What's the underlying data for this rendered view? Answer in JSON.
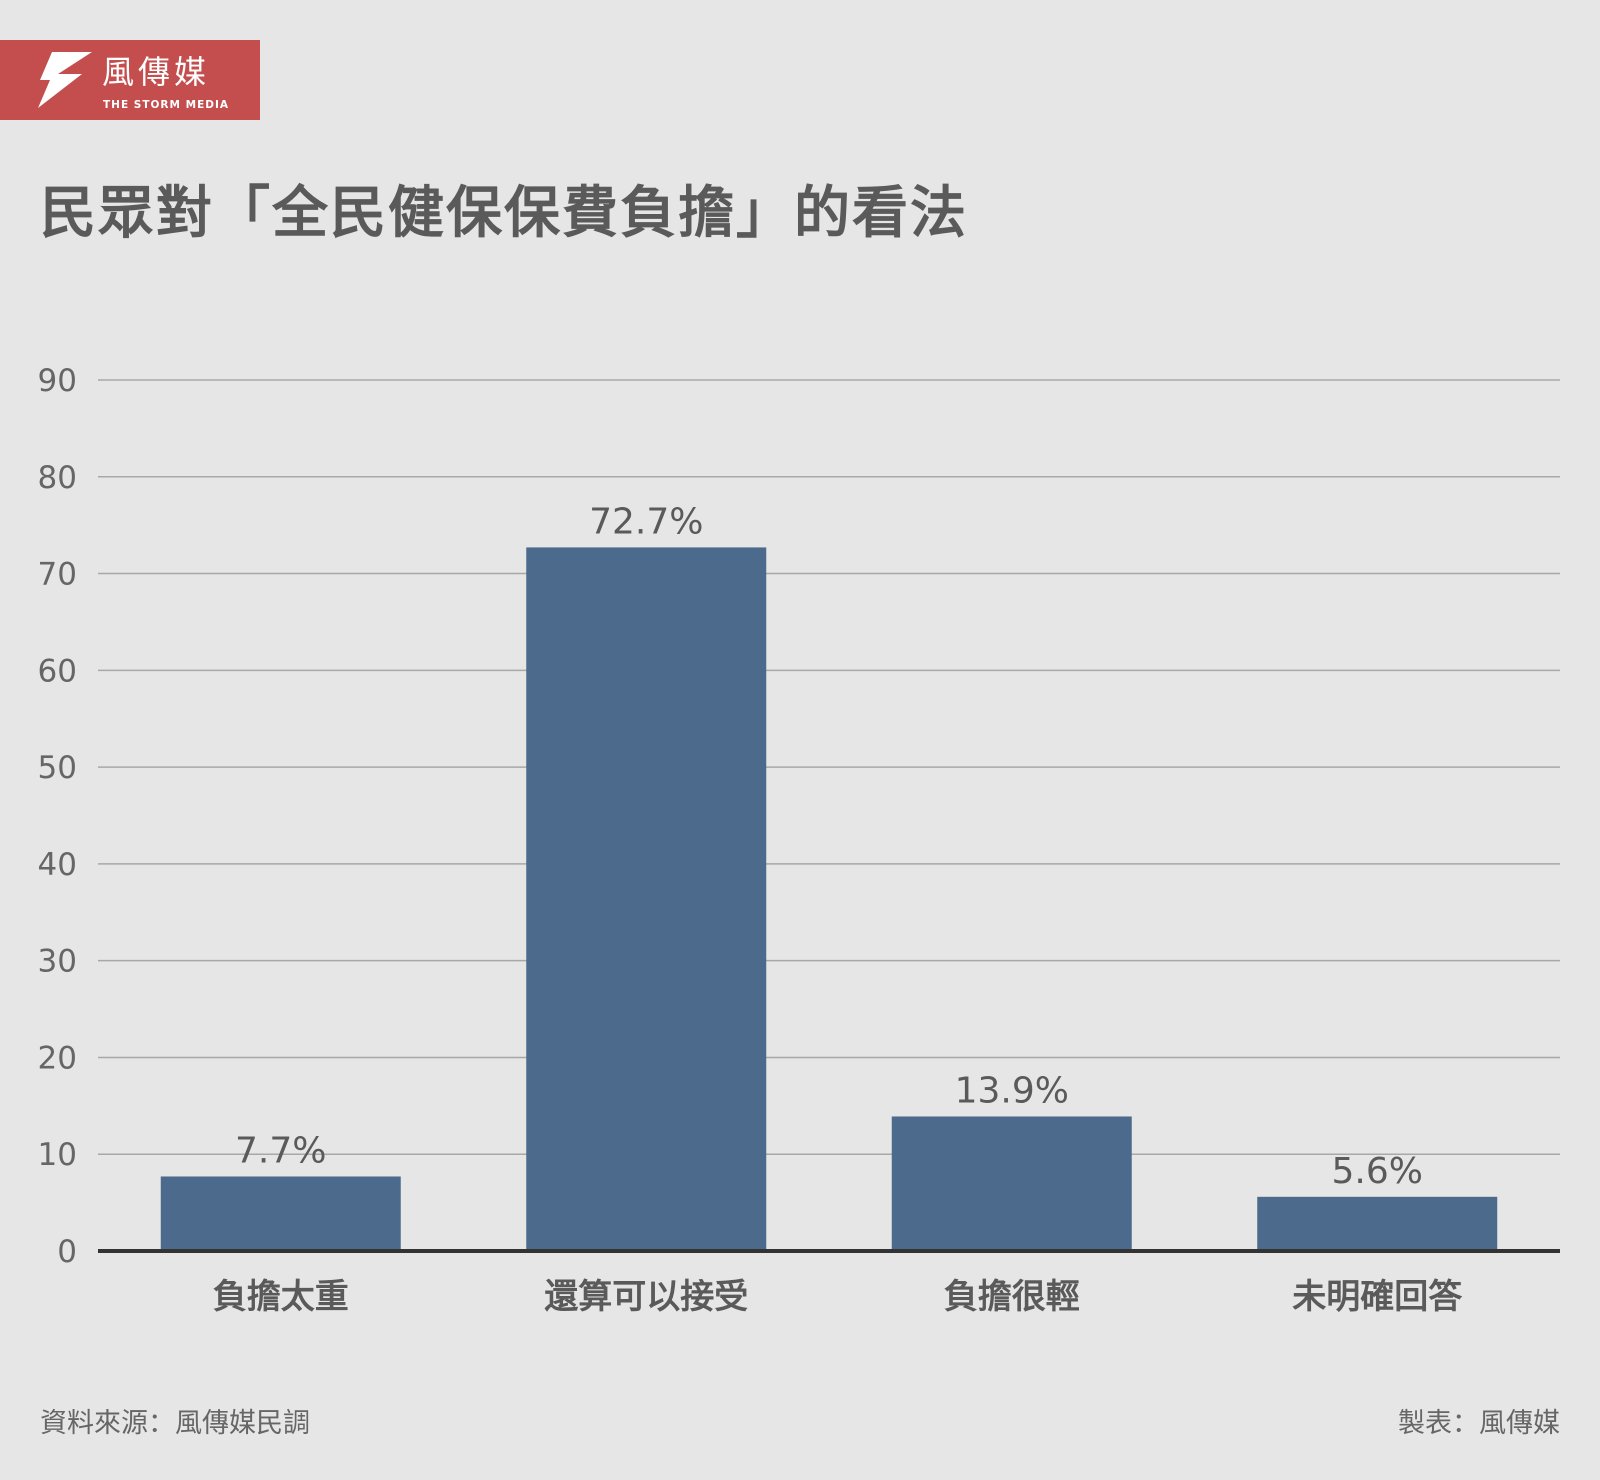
{
  "brand": {
    "name_cn": "風傳媒",
    "name_en": "THE STORM MEDIA",
    "color": "#c44e4e"
  },
  "title": "民眾對「全民健保保費負擔」的看法",
  "footer": {
    "source": "資料來源：風傳媒民調",
    "credit": "製表：風傳媒"
  },
  "chart_data": {
    "type": "bar",
    "categories": [
      "負擔太重",
      "還算可以接受",
      "負擔很輕",
      "未明確回答"
    ],
    "values": [
      7.7,
      72.7,
      13.9,
      5.6
    ],
    "value_labels": [
      "7.7%",
      "72.7%",
      "13.9%",
      "5.6%"
    ],
    "y_ticks": [
      0,
      10,
      20,
      30,
      40,
      50,
      60,
      70,
      80,
      90
    ],
    "ylim": [
      0,
      90
    ],
    "grid": true,
    "bar_color": "#4c6a8b"
  }
}
